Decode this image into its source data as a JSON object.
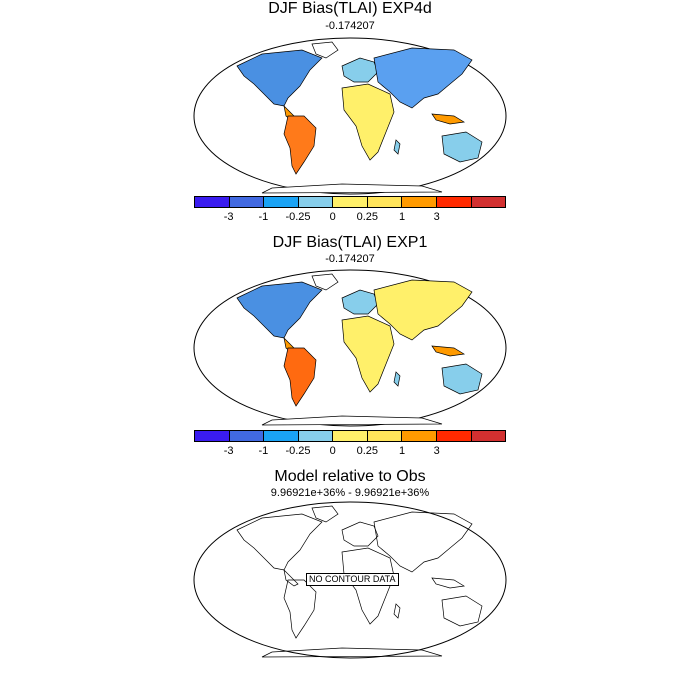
{
  "panels": [
    {
      "title": "DJF Bias(TLAI) EXP4d",
      "subtitle": "-0.174207",
      "has_data": true
    },
    {
      "title": "DJF Bias(TLAI) EXP1",
      "subtitle": "-0.174207",
      "has_data": true
    },
    {
      "title": "Model relative to Obs",
      "subtitle": "9.96921e+36% - 9.96921e+36%",
      "has_data": false,
      "no_data_text": "NO CONTOUR DATA"
    }
  ],
  "colorbar": {
    "colors": [
      "#3a1cf0",
      "#4169e1",
      "#1aa3f5",
      "#87ceeb",
      "#fff06a",
      "#ffe45a",
      "#ff9a00",
      "#ff2a00",
      "#d23030"
    ],
    "labels": [
      "-3",
      "-1",
      "-0.25",
      "0",
      "0.25",
      "1",
      "3"
    ]
  },
  "colors": {
    "deep_negative": "#3a1cf0",
    "negative": "#4169e1",
    "slight_negative": "#1aa3f5",
    "near_zero_neg": "#87ceeb",
    "near_zero_pos": "#fff06a",
    "positive": "#ff9a00",
    "strong_positive": "#ff2a00"
  }
}
